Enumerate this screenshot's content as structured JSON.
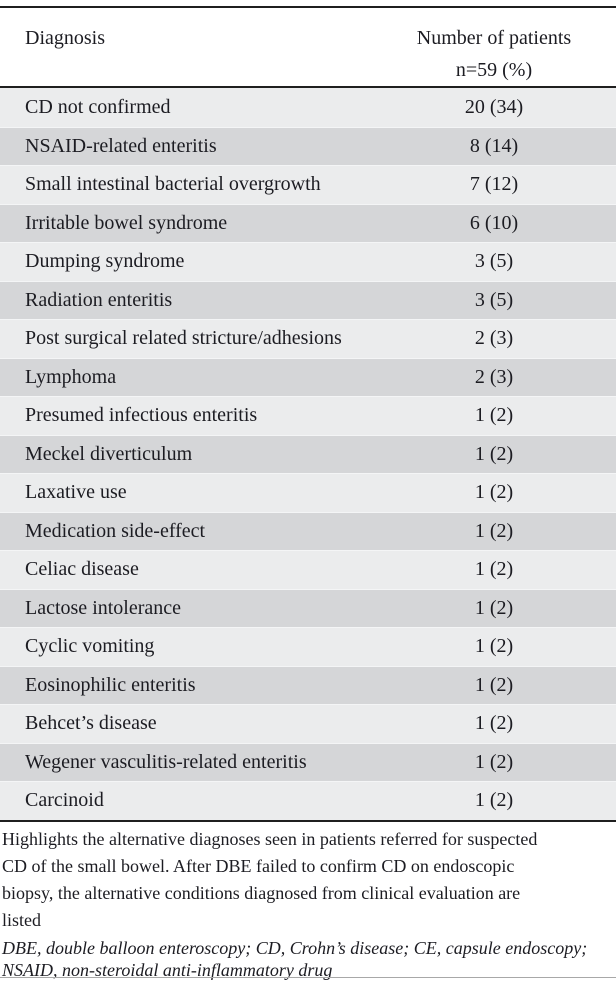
{
  "table": {
    "header": {
      "col1": "Diagnosis",
      "col2_line1": "Number of patients",
      "col2_line2": "n=59 (%)"
    },
    "rows": [
      {
        "diagnosis": "CD not confirmed",
        "value": "20 (34)"
      },
      {
        "diagnosis": "NSAID-related enteritis",
        "value": "8 (14)"
      },
      {
        "diagnosis": "Small intestinal bacterial overgrowth",
        "value": "7 (12)"
      },
      {
        "diagnosis": "Irritable bowel syndrome",
        "value": "6 (10)"
      },
      {
        "diagnosis": "Dumping syndrome",
        "value": "3 (5)"
      },
      {
        "diagnosis": "Radiation enteritis",
        "value": "3 (5)"
      },
      {
        "diagnosis": "Post surgical related stricture/adhesions",
        "value": "2 (3)"
      },
      {
        "diagnosis": "Lymphoma",
        "value": "2 (3)"
      },
      {
        "diagnosis": "Presumed infectious enteritis",
        "value": "1 (2)"
      },
      {
        "diagnosis": "Meckel diverticulum",
        "value": "1 (2)"
      },
      {
        "diagnosis": "Laxative use",
        "value": "1 (2)"
      },
      {
        "diagnosis": "Medication side-effect",
        "value": "1 (2)"
      },
      {
        "diagnosis": "Celiac disease",
        "value": "1 (2)"
      },
      {
        "diagnosis": "Lactose intolerance",
        "value": "1 (2)"
      },
      {
        "diagnosis": "Cyclic vomiting",
        "value": "1 (2)"
      },
      {
        "diagnosis": "Eosinophilic enteritis",
        "value": "1 (2)"
      },
      {
        "diagnosis": "Behcet’s disease",
        "value": "1 (2)"
      },
      {
        "diagnosis": "Wegener vasculitis-related enteritis",
        "value": "1 (2)"
      },
      {
        "diagnosis": "Carcinoid",
        "value": "1 (2)"
      }
    ]
  },
  "footnotes": {
    "description_lines": [
      "Highlights the alternative diagnoses seen in patients referred for suspected",
      "CD of the small bowel. After DBE failed to confirm CD on endoscopic",
      "biopsy, the alternative conditions diagnosed from clinical evaluation are",
      "listed"
    ],
    "abbreviation_lines": [
      "DBE, double balloon enteroscopy; CD, Crohn’s disease; CE, capsule endoscopy;",
      "NSAID, non-steroidal anti-inflammatory drug"
    ]
  },
  "colors": {
    "row_light": "#ebeced",
    "row_dark": "#d5d6d8",
    "rule_dark": "#1f1f1f",
    "rule_bottom": "#a8a8a8",
    "text": "#1c1c22"
  }
}
